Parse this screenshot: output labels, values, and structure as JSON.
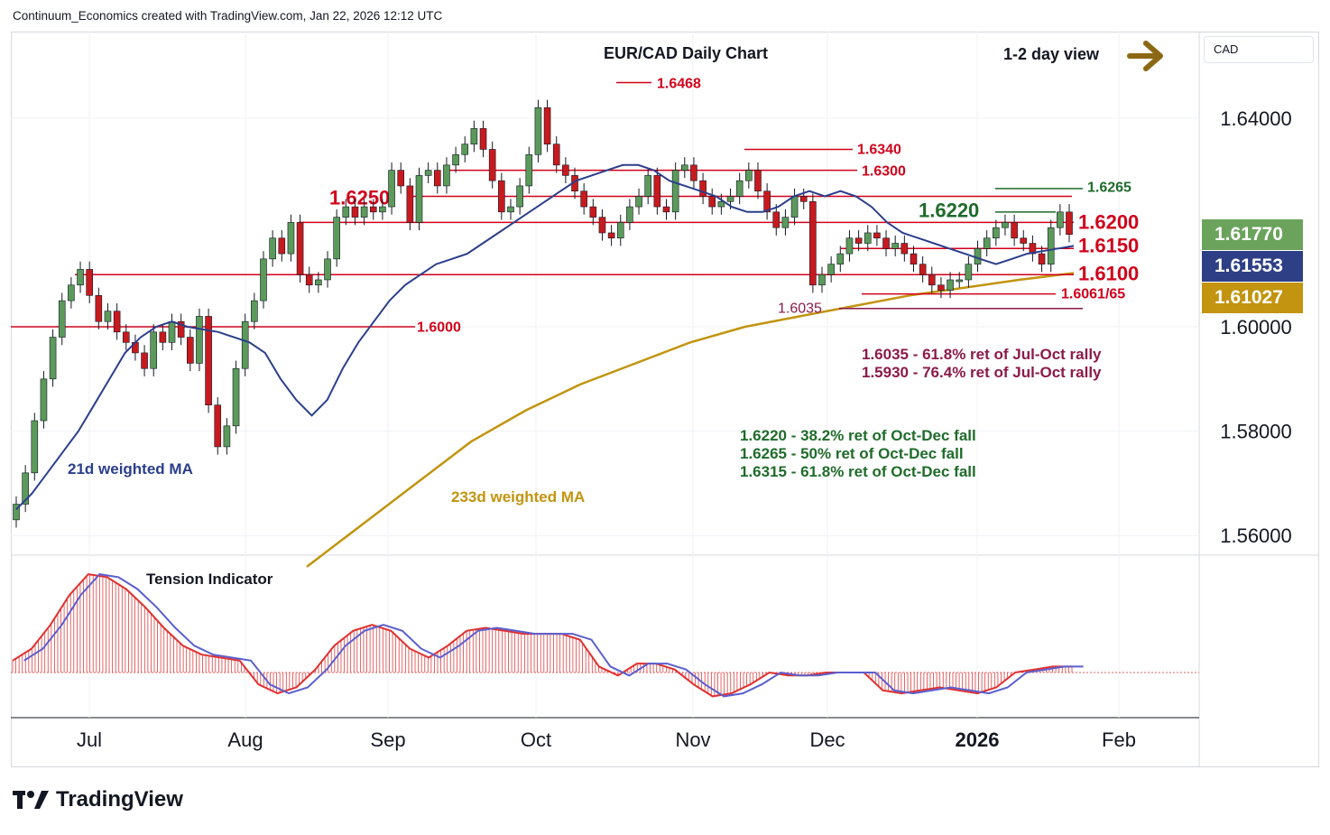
{
  "header": {
    "attribution": "Continuum_Economics created with TradingView.com, Jan 22, 2026 12:12 UTC"
  },
  "brand": {
    "name": "TradingView"
  },
  "currency_label": "CAD",
  "price_tags": [
    {
      "value": "1.61770",
      "color": "#6ba35c"
    },
    {
      "value": "1.61553",
      "color": "#2e3f86"
    },
    {
      "value": "1.61027",
      "color": "#c2940f"
    }
  ],
  "view": {
    "label": "1-2 day view",
    "arrow": "right-arrow-icon"
  },
  "colors": {
    "up": "#5b9a5b",
    "down": "#c71a1f",
    "ma21": "#2b3e8c",
    "ma233": "#c2940f",
    "resistance": "#d0021b",
    "fib_support": "#8b1a4a",
    "fib_resistance": "#1f6b2a"
  },
  "chart_data": [
    {
      "type": "candlestick",
      "title": "EUR/CAD Daily Chart",
      "x_ticks": [
        "Jul",
        "Aug",
        "Sep",
        "Oct",
        "Nov",
        "Dec",
        "2026",
        "Feb"
      ],
      "y_ticks": [
        "1.56000",
        "1.58000",
        "1.60000",
        "1.64000"
      ],
      "ylim": [
        1.552,
        1.652
      ],
      "ma_labels": [
        "21d weighted MA",
        "233d weighted MA"
      ],
      "levels": [
        {
          "label": "1.6468",
          "value": 1.6468,
          "color": "#d0021b",
          "weight": "bold"
        },
        {
          "label": "1.6340",
          "value": 1.634,
          "color": "#d0021b",
          "weight": "bold"
        },
        {
          "label": "1.6300",
          "value": 1.63,
          "color": "#d0021b",
          "weight": "bold"
        },
        {
          "label": "1.6265",
          "value": 1.6265,
          "color": "#1f6b2a",
          "weight": "bold"
        },
        {
          "label": "1.6250",
          "value": 1.625,
          "color": "#d0021b",
          "weight": "bold"
        },
        {
          "label": "1.6220",
          "value": 1.622,
          "color": "#1f6b2a",
          "weight": "bold"
        },
        {
          "label": "1.6200",
          "value": 1.62,
          "color": "#d0021b",
          "weight": "bold"
        },
        {
          "label": "1.6150",
          "value": 1.615,
          "color": "#d0021b",
          "weight": "bold"
        },
        {
          "label": "1.6100",
          "value": 1.61,
          "color": "#d0021b",
          "weight": "bold"
        },
        {
          "label": "1.6061/65",
          "value": 1.6063,
          "color": "#d0021b",
          "weight": "bold"
        },
        {
          "label": "1.6035",
          "value": 1.6035,
          "color": "#8b1a4a",
          "weight": "normal"
        },
        {
          "label": "1.6000",
          "value": 1.6,
          "color": "#d0021b",
          "weight": "bold"
        }
      ],
      "annotations": [
        "1.6035 - 61.8% ret of Jul-Oct rally",
        "1.5930 - 76.4% ret of Jul-Oct rally",
        "1.6220 - 38.2% ret of Oct-Dec fall",
        "1.6265 - 50% ret of Oct-Dec fall",
        "1.6315 - 61.8% ret of Oct-Dec fall"
      ],
      "close_path": [
        1.566,
        1.572,
        1.582,
        1.59,
        1.598,
        1.605,
        1.608,
        1.611,
        1.606,
        1.601,
        1.603,
        1.599,
        1.597,
        1.595,
        1.592,
        1.599,
        1.597,
        1.601,
        1.598,
        1.593,
        1.602,
        1.585,
        1.577,
        1.581,
        1.592,
        1.601,
        1.605,
        1.613,
        1.617,
        1.614,
        1.62,
        1.61,
        1.608,
        1.609,
        1.613,
        1.621,
        1.623,
        1.621,
        1.623,
        1.622,
        1.623,
        1.63,
        1.627,
        1.62,
        1.629,
        1.63,
        1.627,
        1.631,
        1.633,
        1.635,
        1.638,
        1.634,
        1.628,
        1.622,
        1.623,
        1.627,
        1.633,
        1.642,
        1.635,
        1.631,
        1.629,
        1.626,
        1.623,
        1.621,
        1.618,
        1.617,
        1.62,
        1.623,
        1.625,
        1.629,
        1.623,
        1.622,
        1.63,
        1.631,
        1.628,
        1.625,
        1.623,
        1.624,
        1.625,
        1.628,
        1.63,
        1.626,
        1.622,
        1.619,
        1.621,
        1.625,
        1.624,
        1.608,
        1.61,
        1.612,
        1.614,
        1.617,
        1.616,
        1.618,
        1.617,
        1.615,
        1.616,
        1.614,
        1.612,
        1.61,
        1.608,
        1.607,
        1.609,
        1.609,
        1.612,
        1.615,
        1.617,
        1.619,
        1.62,
        1.617,
        1.616,
        1.614,
        1.612,
        1.619,
        1.622,
        1.6177
      ],
      "ma21_path": [
        1.565,
        1.568,
        1.572,
        1.576,
        1.58,
        1.585,
        1.59,
        1.595,
        1.598,
        1.6,
        1.601,
        1.6,
        1.5995,
        1.599,
        1.598,
        1.597,
        1.595,
        1.59,
        1.586,
        1.583,
        1.586,
        1.592,
        1.597,
        1.601,
        1.605,
        1.608,
        1.61,
        1.612,
        1.613,
        1.614,
        1.616,
        1.618,
        1.62,
        1.622,
        1.624,
        1.626,
        1.628,
        1.629,
        1.63,
        1.631,
        1.631,
        1.63,
        1.628,
        1.627,
        1.626,
        1.625,
        1.623,
        1.622,
        1.622,
        1.623,
        1.625,
        1.626,
        1.625,
        1.626,
        1.625,
        1.623,
        1.62,
        1.618,
        1.617,
        1.616,
        1.615,
        1.614,
        1.613,
        1.612,
        1.613,
        1.614,
        1.6145,
        1.615,
        1.6155
      ],
      "ma233_path": [
        1.554,
        1.562,
        1.57,
        1.578,
        1.584,
        1.589,
        1.593,
        1.597,
        1.6,
        1.602,
        1.604,
        1.606,
        1.6075,
        1.609,
        1.6103
      ]
    },
    {
      "type": "area",
      "title": "Tension Indicator",
      "values": [
        0.4,
        0.8,
        1.6,
        2.6,
        3.3,
        3.2,
        2.8,
        2.2,
        1.5,
        0.9,
        0.6,
        0.5,
        0.4,
        -0.4,
        -0.7,
        -0.5,
        0.1,
        0.9,
        1.4,
        1.6,
        1.4,
        0.8,
        0.5,
        0.9,
        1.4,
        1.5,
        1.4,
        1.3,
        1.3,
        1.3,
        1.1,
        0.2,
        -0.1,
        0.3,
        0.3,
        0.1,
        -0.4,
        -0.8,
        -0.7,
        -0.4,
        0.0,
        -0.1,
        -0.1,
        0.0,
        0.0,
        0.0,
        -0.6,
        -0.7,
        -0.6,
        -0.5,
        -0.6,
        -0.7,
        -0.5,
        0.0,
        0.1,
        0.2,
        0.2
      ]
    }
  ]
}
